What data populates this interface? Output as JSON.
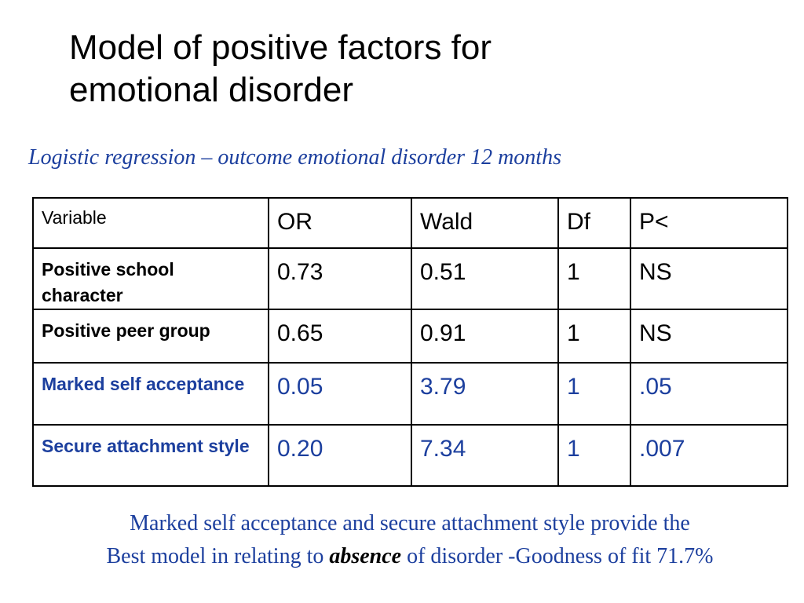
{
  "title": {
    "line1": "Model of positive factors for",
    "line2": "emotional disorder"
  },
  "subtitle": "Logistic regression – outcome emotional disorder 12 months",
  "table": {
    "headers": [
      "Variable",
      "OR",
      "Wald",
      "Df",
      "P<"
    ],
    "rows": [
      {
        "variable": "Positive school character",
        "or": "0.73",
        "wald": "0.51",
        "df": "1",
        "p": "NS",
        "highlight": false
      },
      {
        "variable": "Positive peer group",
        "or": "0.65",
        "wald": "0.91",
        "df": "1",
        "p": "NS",
        "highlight": false
      },
      {
        "variable": "Marked self acceptance",
        "or": "0.05",
        "wald": "3.79",
        "df": "1",
        "p": ".05",
        "highlight": true
      },
      {
        "variable": "Secure attachment style",
        "or": "0.20",
        "wald": "7.34",
        "df": "1",
        "p": ".007",
        "highlight": true
      }
    ]
  },
  "footnote": {
    "line1": "Marked self acceptance and secure attachment style provide the",
    "line2_before": "Best model in relating to ",
    "line2_emphasis": "absence",
    "line2_after": " of disorder -Goodness of fit 71.7%"
  },
  "colors": {
    "accent_blue": "#1c3f9e",
    "text": "#000000",
    "background": "#ffffff"
  }
}
